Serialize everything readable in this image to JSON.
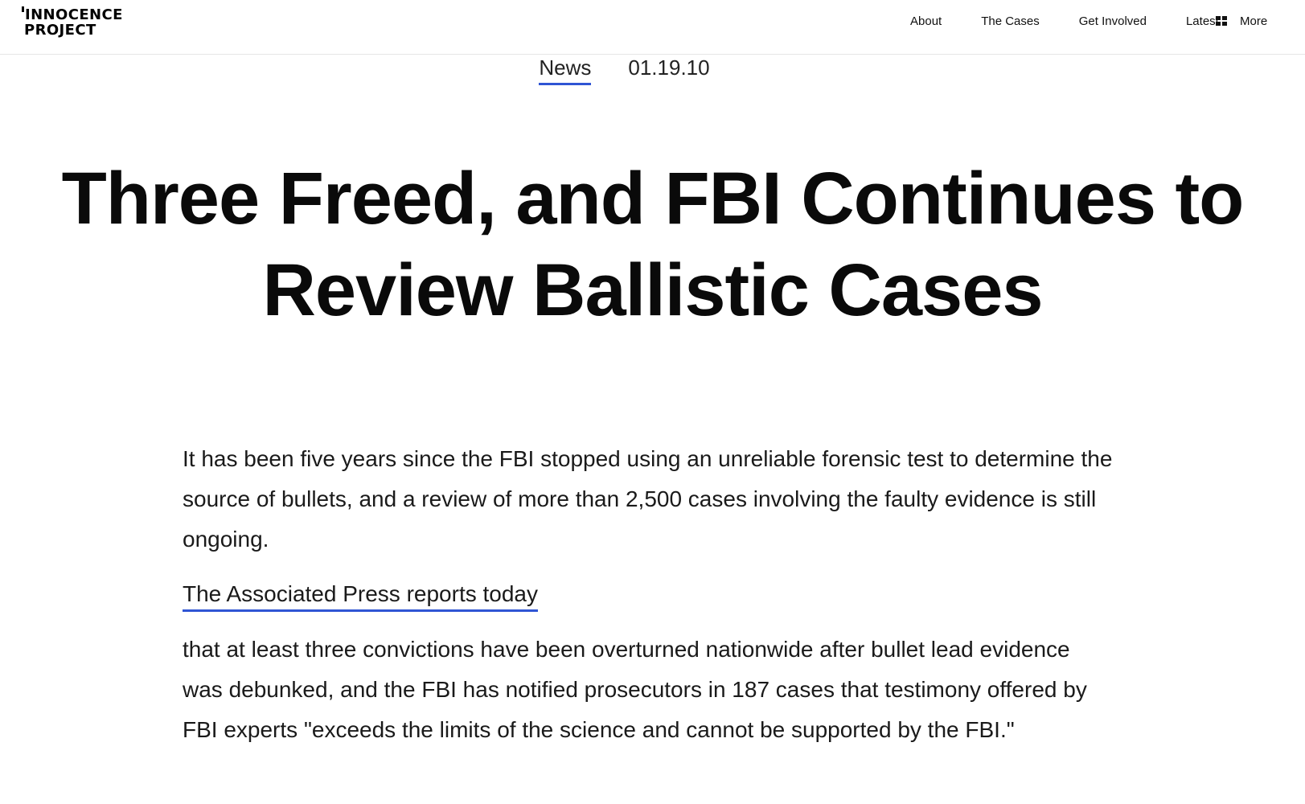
{
  "header": {
    "logo": {
      "line1": "INNOCENCE",
      "line2": "PROJECT"
    },
    "nav": [
      {
        "label": "About"
      },
      {
        "label": "The Cases"
      },
      {
        "label": "Get Involved"
      },
      {
        "label": "Latest"
      }
    ],
    "more": {
      "label": "More",
      "icon": "grid-icon"
    }
  },
  "article": {
    "category": "News",
    "date": "01.19.10",
    "title": "Three Freed, and FBI Continues to Review Ballistic Cases",
    "paragraph1": "It has been five years since the FBI stopped using an unreliable forensic test to determine the source of bullets, and a review of more than 2,500 cases involving the faulty evidence is still ongoing.",
    "link_text": "The Associated Press reports today",
    "paragraph2": "that at least three convictions have been overturned nationwide after bullet lead evidence was debunked, and the FBI has notified prosecutors in 187 cases that testimony offered by FBI experts \"exceeds the limits of the science and cannot be supported by the FBI.\""
  },
  "colors": {
    "accent": "#2f55d4",
    "text": "#111111",
    "background": "#ffffff"
  }
}
